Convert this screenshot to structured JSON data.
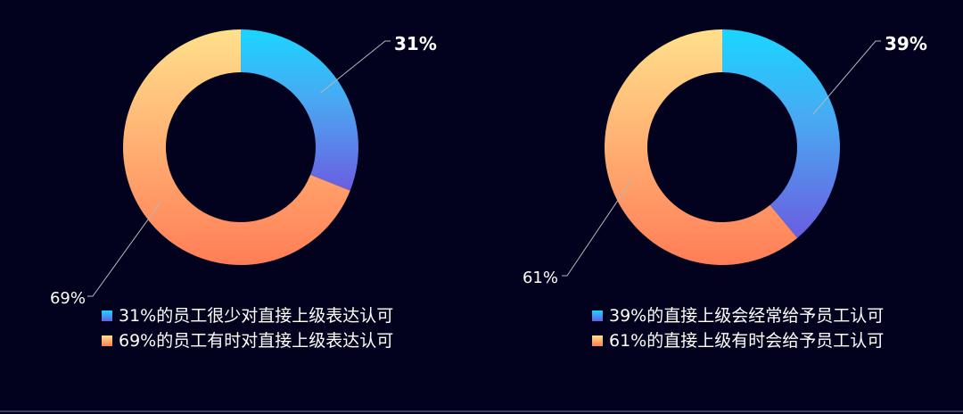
{
  "colors": {
    "background": "#02021f",
    "blue_top": "#1ad6ff",
    "blue_mid": "#4aa7f2",
    "blue_bottom": "#6b5de0",
    "orange_top": "#ffe08c",
    "orange_bottom": "#ff7d57",
    "leader": "#b7b7b7"
  },
  "chart_data": [
    {
      "type": "pie",
      "variant": "donut",
      "slices": [
        {
          "label": "31%的员工很少对直接上级表达认可",
          "value": 31,
          "display": "31%",
          "bold": true
        },
        {
          "label": "69%的员工有时对直接上级表达认可",
          "value": 69,
          "display": "69%",
          "bold": false
        }
      ],
      "legend_position": "bottom"
    },
    {
      "type": "pie",
      "variant": "donut",
      "slices": [
        {
          "label": "39%的直接上级会经常给予员工认可",
          "value": 39,
          "display": "39%",
          "bold": true
        },
        {
          "label": "61%的直接上级有时会给予员工认可",
          "value": 61,
          "display": "61%",
          "bold": false
        }
      ],
      "legend_position": "bottom"
    }
  ]
}
